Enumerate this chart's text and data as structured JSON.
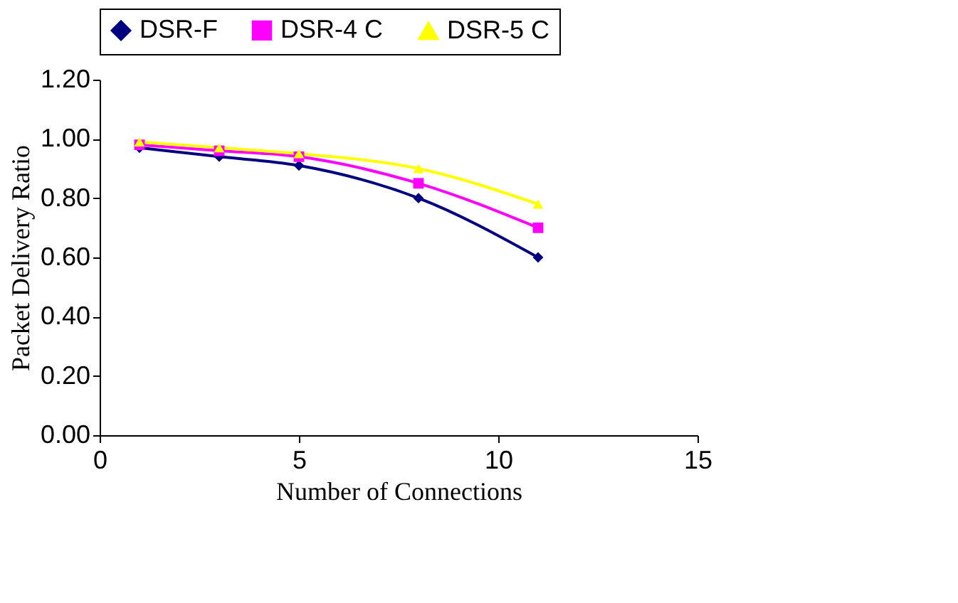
{
  "chart_data": {
    "type": "line",
    "xlabel": "Number of Connections",
    "ylabel": "Packet Delivery  Ratio",
    "x": [
      1,
      3,
      5,
      8,
      11
    ],
    "series": [
      {
        "name": "DSR-F",
        "color": "#000080",
        "marker": "diamond",
        "values": [
          0.97,
          0.94,
          0.91,
          0.8,
          0.6
        ]
      },
      {
        "name": "DSR-4 C",
        "color": "#ff00ff",
        "marker": "square",
        "values": [
          0.98,
          0.96,
          0.94,
          0.85,
          0.7
        ]
      },
      {
        "name": "DSR-5 C",
        "color": "#ffff00",
        "marker": "triangle",
        "values": [
          0.99,
          0.97,
          0.95,
          0.9,
          0.78
        ]
      }
    ],
    "xlim": [
      0,
      15
    ],
    "xticks": [
      0,
      5,
      10,
      15
    ],
    "ylim": [
      0,
      1.2
    ],
    "yticks": [
      {
        "value": 0,
        "label": "0.00"
      },
      {
        "value": 0.2,
        "label": "0.20"
      },
      {
        "value": 0.4,
        "label": "0.40"
      },
      {
        "value": 0.6,
        "label": "0.60"
      },
      {
        "value": 0.8,
        "label": "0.80"
      },
      {
        "value": 1.0,
        "label": "1.00"
      },
      {
        "value": 1.2,
        "label": "1.20"
      }
    ],
    "grid": false,
    "legend": "top",
    "line_style": "solid"
  }
}
